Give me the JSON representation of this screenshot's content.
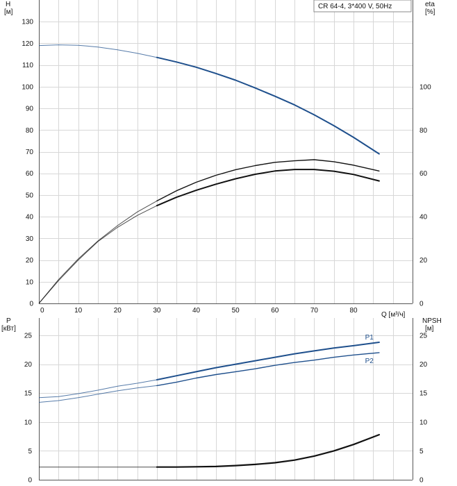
{
  "header": {
    "legend_label": "CR 64-4, 3*400 V, 50Hz"
  },
  "colors": {
    "head": "#1e4f8c",
    "power": "#1e4f8c",
    "efficiency": "#111111",
    "npsh": "#111111",
    "thin_extension": "#7a8aa0"
  },
  "chart_data": [
    {
      "type": "line",
      "name": "head-and-efficiency",
      "xlabel": "Q [м³/ч]",
      "ylabel": "H\n[м]",
      "y2label": "eta\n[%]",
      "xlim": [
        0,
        95
      ],
      "ylim": [
        0,
        140
      ],
      "y2lim": [
        0,
        140
      ],
      "x_ticks": [
        0,
        10,
        20,
        30,
        40,
        50,
        60,
        70,
        80
      ],
      "y_ticks": [
        0,
        10,
        20,
        30,
        40,
        50,
        60,
        70,
        80,
        90,
        100,
        110,
        120,
        130
      ],
      "y2_ticks": [
        0,
        20,
        40,
        60,
        80,
        100
      ],
      "grid": true,
      "legend_position": "top-right",
      "series": [
        {
          "name": "",
          "axis": "left",
          "role": "head",
          "x": [
            0,
            5,
            10,
            15,
            20,
            25,
            30,
            35,
            40,
            45,
            50,
            55,
            60,
            65,
            70,
            75,
            80,
            86.5
          ],
          "y": [
            119,
            119.3,
            119.1,
            118.3,
            117.0,
            115.4,
            113.5,
            111.4,
            109.0,
            106.1,
            103.0,
            99.4,
            95.6,
            91.6,
            87.0,
            82.0,
            76.6,
            69.0
          ],
          "thin_until": 30
        },
        {
          "name": "",
          "axis": "right",
          "role": "efficiency-upper",
          "x": [
            0,
            5,
            10,
            15,
            20,
            25,
            30,
            35,
            40,
            45,
            50,
            55,
            60,
            65,
            70,
            75,
            80,
            86.5
          ],
          "y": [
            0,
            11,
            20.5,
            28.8,
            35.9,
            42.2,
            47.3,
            52,
            55.9,
            59.1,
            61.7,
            63.6,
            65.1,
            65.8,
            66.3,
            65.4,
            63.8,
            61.1
          ],
          "thin_until": 30
        },
        {
          "name": "",
          "axis": "right",
          "role": "efficiency-lower",
          "x": [
            0,
            5,
            10,
            15,
            20,
            25,
            30,
            35,
            40,
            45,
            50,
            55,
            60,
            65,
            70,
            75,
            80,
            86.5
          ],
          "y": [
            0,
            10.5,
            20,
            28.5,
            35.1,
            40.6,
            45.1,
            49.0,
            52.2,
            55.0,
            57.5,
            59.6,
            61.1,
            61.8,
            61.8,
            61.0,
            59.5,
            56.5
          ],
          "thin_until": 30
        }
      ]
    },
    {
      "type": "line",
      "name": "power-and-npsh",
      "xlabel": "",
      "ylabel": "P\n[кВт]",
      "y2label": "NPSH\n[м]",
      "xlim": [
        0,
        95
      ],
      "ylim": [
        0,
        28
      ],
      "y2lim": [
        0,
        28
      ],
      "y_ticks": [
        0,
        5,
        10,
        15,
        20,
        25
      ],
      "y2_ticks": [
        0,
        5,
        10,
        15,
        20,
        25
      ],
      "grid": true,
      "series": [
        {
          "name": "P1",
          "axis": "left",
          "role": "power",
          "x": [
            0,
            5,
            10,
            15,
            20,
            25,
            30,
            35,
            40,
            45,
            50,
            55,
            60,
            65,
            70,
            75,
            80,
            86.5
          ],
          "y": [
            14.2,
            14.4,
            14.9,
            15.5,
            16.2,
            16.7,
            17.3,
            18.0,
            18.7,
            19.4,
            20.0,
            20.6,
            21.2,
            21.8,
            22.3,
            22.8,
            23.2,
            23.8
          ],
          "thin_until": 30,
          "label_at": [
            84,
            24.7
          ]
        },
        {
          "name": "P2",
          "axis": "left",
          "role": "power",
          "x": [
            0,
            5,
            10,
            15,
            20,
            25,
            30,
            35,
            40,
            45,
            50,
            55,
            60,
            65,
            70,
            75,
            80,
            86.5
          ],
          "y": [
            13.4,
            13.7,
            14.2,
            14.8,
            15.4,
            15.9,
            16.3,
            16.9,
            17.6,
            18.2,
            18.7,
            19.2,
            19.8,
            20.3,
            20.7,
            21.2,
            21.6,
            22.0
          ],
          "thin_until": 30,
          "label_at": [
            84,
            20.6
          ]
        },
        {
          "name": "",
          "axis": "right",
          "role": "npsh",
          "x": [
            0,
            10,
            20,
            30,
            35,
            40,
            45,
            50,
            55,
            60,
            65,
            70,
            75,
            80,
            86.5
          ],
          "y": [
            2.2,
            2.2,
            2.2,
            2.2,
            2.2,
            2.25,
            2.3,
            2.45,
            2.65,
            2.95,
            3.4,
            4.1,
            5.0,
            6.1,
            7.8
          ],
          "thin_until": 30
        }
      ]
    }
  ]
}
